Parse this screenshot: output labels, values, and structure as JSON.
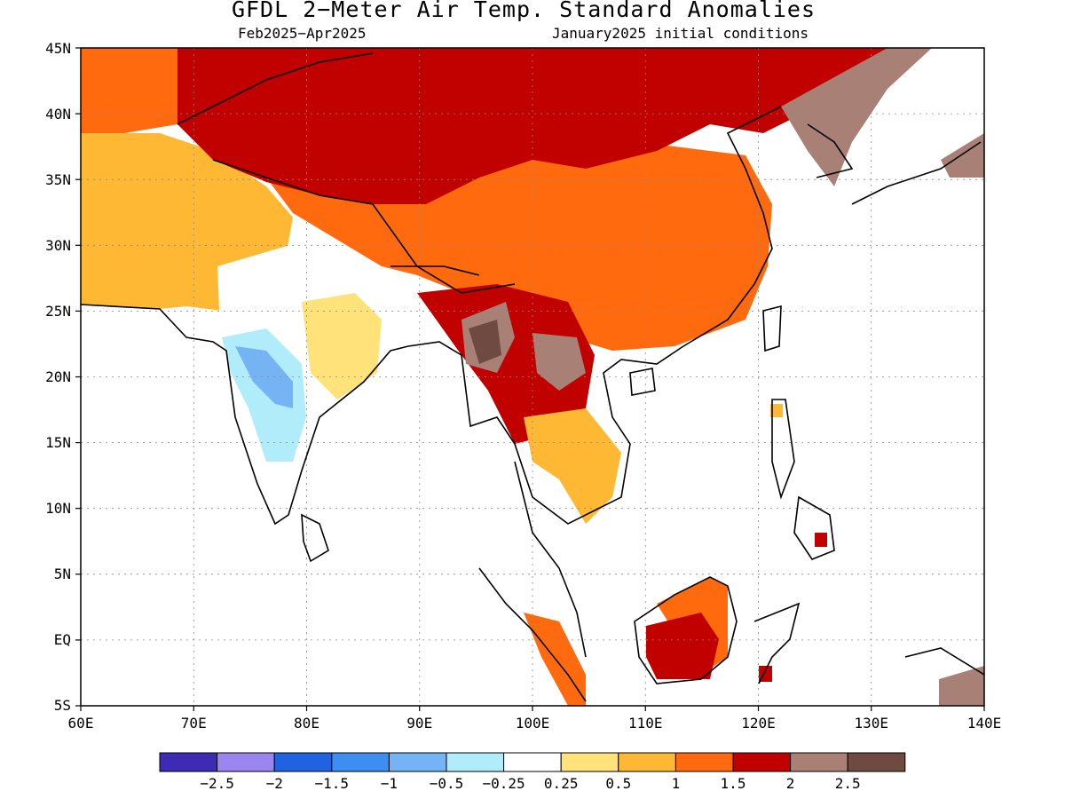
{
  "title": "GFDL 2−Meter Air Temp. Standard Anomalies",
  "period": "Feb2025−Apr2025",
  "init": "January2025 initial conditions",
  "map": {
    "lon_range": [
      60,
      140
    ],
    "lat_range": [
      -5,
      45
    ],
    "lon_ticks": [
      "60E",
      "70E",
      "80E",
      "90E",
      "100E",
      "110E",
      "120E",
      "130E",
      "140E"
    ],
    "lat_ticks": [
      "45N",
      "40N",
      "35N",
      "30N",
      "25N",
      "20N",
      "15N",
      "10N",
      "5N",
      "EQ",
      "5S"
    ]
  },
  "legend": {
    "colors": [
      "#3d2bb5",
      "#9b86f0",
      "#1f63e0",
      "#3d8ef0",
      "#76b3f5",
      "#b0ecfa",
      "#ffffff",
      "#ffe27a",
      "#ffb833",
      "#ff6a0f",
      "#c10000",
      "#a98076",
      "#6e4a40"
    ],
    "labels": [
      "−2.5",
      "−2",
      "−1.5",
      "−1",
      "−0.5",
      "−0.25",
      "0.25",
      "0.5",
      "1",
      "1.5",
      "2",
      "2.5"
    ]
  },
  "regions": [
    {
      "name": "china-main",
      "color": "#ff6a0f"
    },
    {
      "name": "north-belt",
      "color": "#c10000"
    },
    {
      "name": "west-asia",
      "color": "#ffb833"
    },
    {
      "name": "india-cool",
      "color": "#ffffff"
    },
    {
      "name": "india-blue",
      "color": "#76b3f5"
    },
    {
      "name": "myanmar-brown",
      "color": "#a98076"
    },
    {
      "name": "borneo",
      "color": "#c10000"
    }
  ]
}
